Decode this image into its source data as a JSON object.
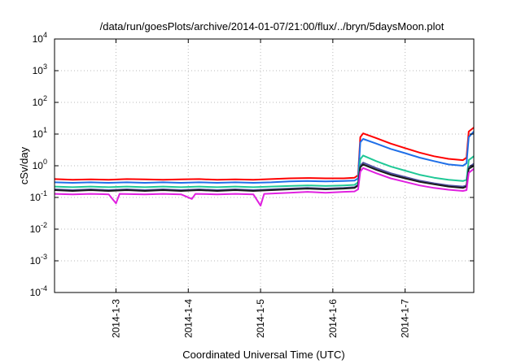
{
  "chart_data": {
    "type": "line",
    "title": "/data/run/goesPlots/archive/2014-01-07/21:00/flux/../bryn/5daysMoon.plot",
    "xlabel": "Coordinated Universal Time (UTC)",
    "ylabel": "cSv/day",
    "y_scale": "log",
    "ylim": [
      0.0001,
      10000
    ],
    "xlim": [
      2.15,
      7.95
    ],
    "y_ticks": [
      {
        "value": 0.0001,
        "base": "10",
        "exp": "-4"
      },
      {
        "value": 0.001,
        "base": "10",
        "exp": "-3"
      },
      {
        "value": 0.01,
        "base": "10",
        "exp": "-2"
      },
      {
        "value": 0.1,
        "base": "10",
        "exp": "-1"
      },
      {
        "value": 1,
        "base": "10",
        "exp": "0"
      },
      {
        "value": 10,
        "base": "10",
        "exp": "1"
      },
      {
        "value": 100,
        "base": "10",
        "exp": "2"
      },
      {
        "value": 1000,
        "base": "10",
        "exp": "3"
      },
      {
        "value": 10000,
        "base": "10",
        "exp": "4"
      }
    ],
    "x_ticks": [
      {
        "value": 3,
        "label": "2014-1-3"
      },
      {
        "value": 4,
        "label": "2014-1-4"
      },
      {
        "value": 5,
        "label": "2014-1-5"
      },
      {
        "value": 6,
        "label": "2014-1-6"
      },
      {
        "value": 7,
        "label": "2014-1-7"
      }
    ],
    "grid": true,
    "series": [
      {
        "color": "#ff0000",
        "points": [
          [
            2.15,
            0.38
          ],
          [
            2.4,
            0.36
          ],
          [
            2.65,
            0.37
          ],
          [
            2.9,
            0.36
          ],
          [
            3.15,
            0.38
          ],
          [
            3.4,
            0.37
          ],
          [
            3.65,
            0.36
          ],
          [
            3.9,
            0.37
          ],
          [
            4.15,
            0.38
          ],
          [
            4.4,
            0.36
          ],
          [
            4.65,
            0.37
          ],
          [
            4.9,
            0.36
          ],
          [
            5.15,
            0.38
          ],
          [
            5.4,
            0.4
          ],
          [
            5.65,
            0.41
          ],
          [
            5.9,
            0.4
          ],
          [
            6.15,
            0.4
          ],
          [
            6.3,
            0.42
          ],
          [
            6.35,
            0.5
          ],
          [
            6.38,
            8.0
          ],
          [
            6.42,
            10.5
          ],
          [
            6.6,
            7.5
          ],
          [
            6.8,
            5.0
          ],
          [
            7.0,
            3.6
          ],
          [
            7.2,
            2.6
          ],
          [
            7.4,
            2.0
          ],
          [
            7.6,
            1.65
          ],
          [
            7.8,
            1.5
          ],
          [
            7.85,
            1.8
          ],
          [
            7.88,
            12.0
          ],
          [
            7.95,
            16.0
          ]
        ]
      },
      {
        "color": "#1f6fe8",
        "points": [
          [
            2.15,
            0.3
          ],
          [
            2.4,
            0.29
          ],
          [
            2.65,
            0.3
          ],
          [
            2.9,
            0.29
          ],
          [
            3.15,
            0.3
          ],
          [
            3.4,
            0.29
          ],
          [
            3.65,
            0.3
          ],
          [
            3.9,
            0.29
          ],
          [
            4.15,
            0.3
          ],
          [
            4.4,
            0.29
          ],
          [
            4.65,
            0.3
          ],
          [
            4.9,
            0.29
          ],
          [
            5.15,
            0.3
          ],
          [
            5.4,
            0.32
          ],
          [
            5.65,
            0.33
          ],
          [
            5.9,
            0.32
          ],
          [
            6.15,
            0.33
          ],
          [
            6.3,
            0.34
          ],
          [
            6.35,
            0.4
          ],
          [
            6.38,
            5.5
          ],
          [
            6.42,
            7.0
          ],
          [
            6.6,
            5.0
          ],
          [
            6.8,
            3.4
          ],
          [
            7.0,
            2.5
          ],
          [
            7.2,
            1.8
          ],
          [
            7.4,
            1.4
          ],
          [
            7.6,
            1.1
          ],
          [
            7.8,
            1.0
          ],
          [
            7.85,
            1.2
          ],
          [
            7.88,
            8.0
          ],
          [
            7.95,
            12.0
          ]
        ]
      },
      {
        "color": "#1fc896",
        "points": [
          [
            2.15,
            0.22
          ],
          [
            2.4,
            0.21
          ],
          [
            2.65,
            0.22
          ],
          [
            2.9,
            0.21
          ],
          [
            3.15,
            0.22
          ],
          [
            3.4,
            0.21
          ],
          [
            3.65,
            0.22
          ],
          [
            3.9,
            0.21
          ],
          [
            4.15,
            0.22
          ],
          [
            4.4,
            0.21
          ],
          [
            4.65,
            0.22
          ],
          [
            4.9,
            0.21
          ],
          [
            5.15,
            0.22
          ],
          [
            5.4,
            0.23
          ],
          [
            5.65,
            0.24
          ],
          [
            5.9,
            0.23
          ],
          [
            6.15,
            0.24
          ],
          [
            6.3,
            0.25
          ],
          [
            6.35,
            0.3
          ],
          [
            6.38,
            1.6
          ],
          [
            6.42,
            2.1
          ],
          [
            6.6,
            1.4
          ],
          [
            6.8,
            0.95
          ],
          [
            7.0,
            0.7
          ],
          [
            7.2,
            0.52
          ],
          [
            7.4,
            0.42
          ],
          [
            7.6,
            0.36
          ],
          [
            7.8,
            0.33
          ],
          [
            7.85,
            0.36
          ],
          [
            7.88,
            1.5
          ],
          [
            7.95,
            2.0
          ]
        ]
      },
      {
        "color": "#5050a0",
        "points": [
          [
            2.15,
            0.18
          ],
          [
            2.4,
            0.17
          ],
          [
            2.65,
            0.18
          ],
          [
            2.9,
            0.17
          ],
          [
            3.15,
            0.18
          ],
          [
            3.4,
            0.17
          ],
          [
            3.65,
            0.18
          ],
          [
            3.9,
            0.17
          ],
          [
            4.15,
            0.18
          ],
          [
            4.4,
            0.17
          ],
          [
            4.65,
            0.18
          ],
          [
            4.9,
            0.17
          ],
          [
            5.15,
            0.18
          ],
          [
            5.4,
            0.19
          ],
          [
            5.65,
            0.2
          ],
          [
            5.9,
            0.19
          ],
          [
            6.15,
            0.2
          ],
          [
            6.3,
            0.21
          ],
          [
            6.35,
            0.25
          ],
          [
            6.38,
            1.0
          ],
          [
            6.42,
            1.25
          ],
          [
            6.6,
            0.85
          ],
          [
            6.8,
            0.58
          ],
          [
            7.0,
            0.44
          ],
          [
            7.2,
            0.34
          ],
          [
            7.4,
            0.28
          ],
          [
            7.6,
            0.24
          ],
          [
            7.8,
            0.22
          ],
          [
            7.85,
            0.24
          ],
          [
            7.88,
            0.9
          ],
          [
            7.95,
            1.15
          ]
        ]
      },
      {
        "color": "#1a1a1a",
        "points": [
          [
            2.15,
            0.17
          ],
          [
            2.4,
            0.16
          ],
          [
            2.65,
            0.17
          ],
          [
            2.9,
            0.16
          ],
          [
            3.15,
            0.17
          ],
          [
            3.4,
            0.16
          ],
          [
            3.65,
            0.17
          ],
          [
            3.9,
            0.16
          ],
          [
            4.15,
            0.17
          ],
          [
            4.4,
            0.16
          ],
          [
            4.65,
            0.17
          ],
          [
            4.9,
            0.16
          ],
          [
            5.15,
            0.17
          ],
          [
            5.4,
            0.18
          ],
          [
            5.65,
            0.19
          ],
          [
            5.9,
            0.18
          ],
          [
            6.15,
            0.19
          ],
          [
            6.3,
            0.2
          ],
          [
            6.35,
            0.24
          ],
          [
            6.38,
            0.9
          ],
          [
            6.42,
            1.1
          ],
          [
            6.6,
            0.75
          ],
          [
            6.8,
            0.52
          ],
          [
            7.0,
            0.4
          ],
          [
            7.2,
            0.31
          ],
          [
            7.4,
            0.26
          ],
          [
            7.6,
            0.22
          ],
          [
            7.8,
            0.2
          ],
          [
            7.85,
            0.22
          ],
          [
            7.88,
            0.8
          ],
          [
            7.95,
            1.0
          ]
        ]
      },
      {
        "color": "#e020e0",
        "points": [
          [
            2.15,
            0.13
          ],
          [
            2.4,
            0.125
          ],
          [
            2.65,
            0.13
          ],
          [
            2.9,
            0.125
          ],
          [
            3.0,
            0.065
          ],
          [
            3.05,
            0.13
          ],
          [
            3.4,
            0.125
          ],
          [
            3.65,
            0.13
          ],
          [
            3.9,
            0.125
          ],
          [
            4.05,
            0.09
          ],
          [
            4.1,
            0.13
          ],
          [
            4.4,
            0.125
          ],
          [
            4.65,
            0.13
          ],
          [
            4.9,
            0.125
          ],
          [
            5.0,
            0.055
          ],
          [
            5.05,
            0.13
          ],
          [
            5.4,
            0.14
          ],
          [
            5.65,
            0.15
          ],
          [
            5.9,
            0.14
          ],
          [
            6.15,
            0.15
          ],
          [
            6.3,
            0.155
          ],
          [
            6.35,
            0.18
          ],
          [
            6.38,
            0.65
          ],
          [
            6.42,
            0.85
          ],
          [
            6.6,
            0.58
          ],
          [
            6.8,
            0.4
          ],
          [
            7.0,
            0.31
          ],
          [
            7.2,
            0.24
          ],
          [
            7.4,
            0.2
          ],
          [
            7.6,
            0.175
          ],
          [
            7.8,
            0.16
          ],
          [
            7.85,
            0.17
          ],
          [
            7.88,
            0.6
          ],
          [
            7.95,
            0.8
          ]
        ]
      }
    ]
  }
}
